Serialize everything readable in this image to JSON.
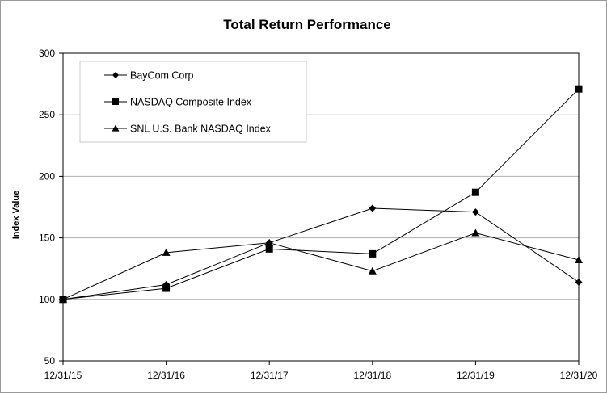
{
  "chart_data": {
    "type": "line",
    "title": "Total Return Performance",
    "xlabel": "",
    "ylabel": "Index Value",
    "categories": [
      "12/31/15",
      "12/31/16",
      "12/31/17",
      "12/31/18",
      "12/31/19",
      "12/31/20"
    ],
    "ylim": [
      50,
      300
    ],
    "yticks": [
      50,
      100,
      150,
      200,
      250,
      300
    ],
    "grid": true,
    "legend_position": "top-left",
    "series": [
      {
        "name": "BayCom Corp",
        "marker": "diamond",
        "values": [
          100,
          112,
          146,
          174,
          171,
          114
        ]
      },
      {
        "name": "NASDAQ Composite Index",
        "marker": "square",
        "values": [
          100,
          109,
          141,
          137,
          187,
          271
        ]
      },
      {
        "name": "SNL U.S. Bank NASDAQ Index",
        "marker": "triangle",
        "values": [
          100,
          138,
          146,
          123,
          154,
          132
        ]
      }
    ],
    "colors": {
      "line": "#000000",
      "grid": "#b0b0b0",
      "axis": "#000000"
    }
  }
}
